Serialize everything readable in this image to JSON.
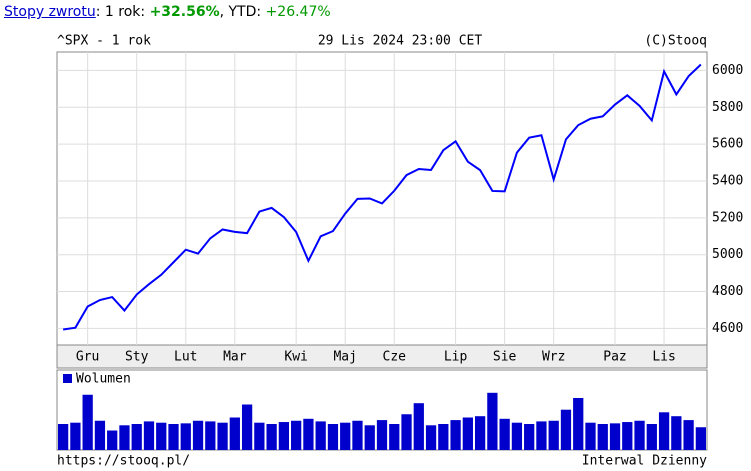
{
  "header": {
    "link": "Stopy zwrotu",
    "period": ": 1 rok: ",
    "return": "+32.56%",
    "ytd_label": ", YTD: ",
    "ytd": "+26.47%"
  },
  "chart_data": [
    {
      "type": "line",
      "title": "^SPX - 1 rok",
      "subtitle": "29 Lis 2024 23:00 CET",
      "source": "(C)Stooq",
      "categories": [
        null,
        null,
        "Gru",
        null,
        null,
        null,
        "Sty",
        null,
        null,
        null,
        "Lut",
        null,
        null,
        null,
        "Mar",
        null,
        null,
        null,
        null,
        "Kwi",
        null,
        null,
        null,
        "Maj",
        null,
        null,
        null,
        "Cze",
        null,
        null,
        null,
        null,
        "Lip",
        null,
        null,
        null,
        "Sie",
        null,
        null,
        null,
        "Wrz",
        null,
        null,
        null,
        null,
        "Paz",
        null,
        null,
        null,
        "Lis",
        null,
        null,
        null
      ],
      "values": [
        4594,
        4604,
        4719,
        4754,
        4770,
        4697,
        4784,
        4840,
        4891,
        4959,
        5027,
        5006,
        5089,
        5137,
        5124,
        5117,
        5234,
        5254,
        5204,
        5123,
        4967,
        5100,
        5128,
        5223,
        5303,
        5305,
        5278,
        5347,
        5432,
        5465,
        5460,
        5567,
        5615,
        5505,
        5459,
        5346,
        5344,
        5554,
        5635,
        5648,
        5408,
        5626,
        5703,
        5738,
        5751,
        5815,
        5865,
        5808,
        5729,
        5995,
        5870,
        5969,
        6032
      ],
      "color": "#0000ff",
      "ylim": [
        4510,
        6100
      ],
      "yticks": [
        4600,
        4800,
        5000,
        5200,
        5400,
        5600,
        5800,
        6000
      ],
      "grid": true
    },
    {
      "type": "bar",
      "series": [
        {
          "name": "Wolumen",
          "color": "#0000cc",
          "values": [
            40,
            42,
            85,
            45,
            30,
            38,
            40,
            44,
            42,
            40,
            41,
            45,
            44,
            42,
            50,
            70,
            42,
            40,
            43,
            45,
            48,
            44,
            40,
            42,
            45,
            38,
            46,
            40,
            55,
            72,
            38,
            40,
            46,
            50,
            52,
            88,
            48,
            42,
            40,
            44,
            45,
            62,
            80,
            42,
            40,
            41,
            43,
            45,
            40,
            58,
            52,
            46,
            35
          ]
        }
      ],
      "ylim": [
        0,
        100
      ]
    }
  ],
  "footer": {
    "url": "https://stooq.pl/",
    "interval": "Interwal Dzienny"
  }
}
